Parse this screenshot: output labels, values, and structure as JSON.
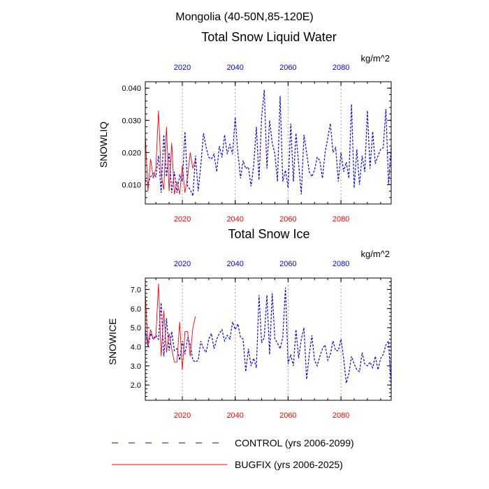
{
  "title": "Mongolia (40-50N,85-120E)",
  "colors": {
    "control": "#0000ff",
    "bugfix": "#ff0000",
    "grid": "#a0a0a0",
    "axis": "#000000"
  },
  "legend": {
    "control_label": "CONTROL (yrs 2006-2099)",
    "bugfix_label": "BUGFIX (yrs 2006-2025)",
    "placement": "bottom"
  },
  "chart_data": [
    {
      "type": "line",
      "title": "Total Snow Liquid Water",
      "units": "kg/m^2",
      "ylabel": "SNOWLIQ",
      "xlim": [
        2006,
        2099
      ],
      "ylim": [
        0.004,
        0.042
      ],
      "yticks": [
        0.01,
        0.02,
        0.03,
        0.04
      ],
      "ytick_labels": [
        "0.010",
        "0.020",
        "0.030",
        "0.040"
      ],
      "xticks_top": [
        "2020",
        "2040",
        "2060",
        "2080"
      ],
      "xticks_bottom": [
        "2020",
        "2040",
        "2060",
        "2080"
      ],
      "xgrid": [
        2020,
        2040,
        2060,
        2080
      ],
      "series": [
        {
          "name": "CONTROL",
          "x_start": 2006,
          "values": [
            0.0115,
            0.0105,
            0.0125,
            0.0135,
            0.0125,
            0.019,
            0.0075,
            0.0255,
            0.0125,
            0.02,
            0.0075,
            0.014,
            0.0075,
            0.013,
            0.011,
            0.0265,
            0.0095,
            0.0085,
            0.0065,
            0.019,
            0.008,
            0.016,
            0.026,
            0.0215,
            0.0185,
            0.018,
            0.0195,
            0.014,
            0.022,
            0.0185,
            0.0255,
            0.0195,
            0.0225,
            0.0195,
            0.031,
            0.02,
            0.012,
            0.0175,
            0.015,
            0.0155,
            0.0095,
            0.016,
            0.028,
            0.0115,
            0.031,
            0.0395,
            0.015,
            0.03,
            0.023,
            0.0195,
            0.011,
            0.0375,
            0.011,
            0.0145,
            0.009,
            0.029,
            0.011,
            0.026,
            0.0165,
            0.007,
            0.0255,
            0.02,
            0.014,
            0.0125,
            0.0145,
            0.0185,
            0.0175,
            0.012,
            0.02,
            0.0245,
            0.029,
            0.02,
            0.0215,
            0.011,
            0.02,
            0.014,
            0.017,
            0.012,
            0.035,
            0.009,
            0.021,
            0.01,
            0.019,
            0.014,
            0.033,
            0.015,
            0.0265,
            0.0165,
            0.019,
            0.021,
            0.0215,
            0.0335,
            0.01,
            0.022
          ]
        },
        {
          "name": "BUGFIX",
          "x_start": 2006,
          "values": [
            0.0255,
            0.008,
            0.018,
            0.012,
            0.015,
            0.033,
            0.013,
            0.0085,
            0.028,
            0.008,
            0.023,
            0.007,
            0.011,
            0.007,
            0.016,
            0.0075,
            0.0125,
            0.02,
            0.015,
            0.018
          ]
        }
      ]
    },
    {
      "type": "line",
      "title": "Total Snow Ice",
      "units": "kg/m^2",
      "ylabel": "SNOWICE",
      "xlim": [
        2006,
        2099
      ],
      "ylim": [
        1.2,
        7.6
      ],
      "yticks": [
        2.0,
        3.0,
        4.0,
        5.0,
        6.0,
        7.0
      ],
      "ytick_labels": [
        "2.0",
        "3.0",
        "4.0",
        "5.0",
        "6.0",
        "7.0"
      ],
      "xticks_top": [
        "2020",
        "2040",
        "2060",
        "2080"
      ],
      "xticks_bottom": [
        "2020",
        "2040",
        "2060",
        "2080"
      ],
      "xgrid": [
        2020,
        2040,
        2060,
        2080
      ],
      "series": [
        {
          "name": "CONTROL",
          "x_start": 2006,
          "values": [
            4.9,
            4.0,
            4.7,
            4.4,
            4.6,
            4.4,
            6.3,
            3.5,
            5.5,
            3.8,
            4.8,
            3.8,
            3.9,
            3.3,
            4.3,
            3.6,
            4.5,
            4.1,
            3.3,
            3.2,
            3.3,
            4.3,
            3.9,
            3.7,
            4.4,
            4.7,
            3.9,
            4.4,
            4.7,
            4.9,
            4.3,
            4.6,
            4.4,
            5.3,
            4.9,
            5.2,
            4.5,
            4.4,
            2.7,
            3.9,
            3.0,
            3.4,
            2.9,
            6.7,
            4.2,
            4.5,
            6.7,
            3.6,
            6.8,
            4.4,
            4.2,
            3.9,
            4.5,
            7.1,
            3.1,
            3.6,
            3.0,
            4.9,
            3.4,
            4.4,
            5.0,
            2.3,
            3.6,
            4.6,
            3.3,
            3.0,
            3.5,
            3.9,
            4.1,
            3.3,
            3.6,
            4.3,
            3.8,
            3.8,
            4.4,
            3.4,
            2.1,
            2.6,
            3.5,
            3.1,
            2.8,
            2.7,
            3.7,
            3.1,
            3.0,
            3.2,
            2.9,
            3.5,
            2.8,
            3.4,
            3.6,
            4.1,
            4.3,
            1.9
          ]
        },
        {
          "name": "BUGFIX",
          "x_start": 2006,
          "values": [
            6.8,
            4.1,
            4.9,
            4.4,
            4.5,
            7.3,
            3.5,
            5.9,
            3.7,
            4.7,
            3.9,
            3.2,
            3.2,
            5.3,
            2.8,
            4.8,
            4.8,
            3.5,
            5.0,
            5.6
          ]
        }
      ]
    }
  ]
}
